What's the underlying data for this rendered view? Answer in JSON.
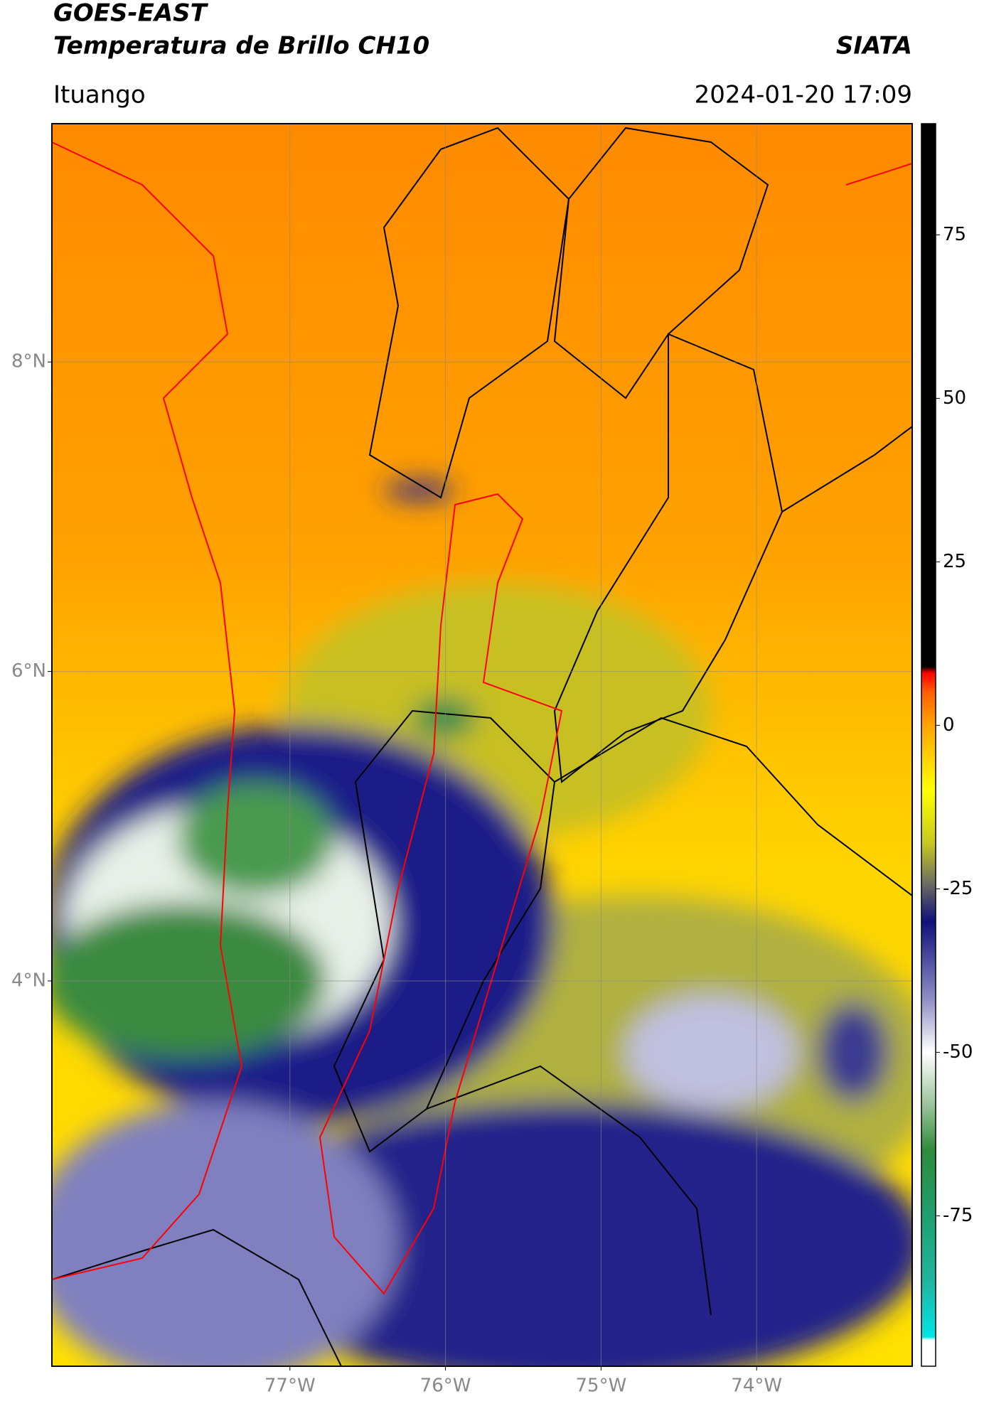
{
  "title": "GOES-EAST",
  "subtitle": "Temperatura de Brillo CH10",
  "source": "SIATA",
  "location": "Ituango",
  "timestamp": "2024-01-20 17:09",
  "chart_data": {
    "type": "map",
    "xlim": [
      -78.53,
      -73.0
    ],
    "ylim": [
      1.51,
      9.54
    ],
    "xticks": [
      {
        "value": -77,
        "label": "77°W"
      },
      {
        "value": -76,
        "label": "76°W"
      },
      {
        "value": -75,
        "label": "75°W"
      },
      {
        "value": -74,
        "label": "74°W"
      }
    ],
    "yticks": [
      {
        "value": 8,
        "label": "8°N"
      },
      {
        "value": 6,
        "label": "6°N"
      },
      {
        "value": 4,
        "label": "4°N"
      }
    ],
    "grid": true,
    "colorbar": {
      "clim": [
        -98,
        92
      ],
      "ticks": [
        75,
        50,
        25,
        0,
        -25,
        -50,
        -75
      ],
      "colormap": [
        {
          "value": -98,
          "color": "#ffffff"
        },
        {
          "value": -94,
          "color": "#ffffff"
        },
        {
          "value": -93.5,
          "color": "#00e5e5"
        },
        {
          "value": -85,
          "color": "#20b5a0"
        },
        {
          "value": -75,
          "color": "#1fa070"
        },
        {
          "value": -65,
          "color": "#2e8b3a"
        },
        {
          "value": -58,
          "color": "#9cc49c"
        },
        {
          "value": -50,
          "color": "#ffffff"
        },
        {
          "value": -42,
          "color": "#9090c8"
        },
        {
          "value": -30,
          "color": "#10107a"
        },
        {
          "value": -24,
          "color": "#707060"
        },
        {
          "value": -18,
          "color": "#c8c820"
        },
        {
          "value": -10,
          "color": "#ffff00"
        },
        {
          "value": 0,
          "color": "#ffa500"
        },
        {
          "value": 5,
          "color": "#ff6000"
        },
        {
          "value": 8,
          "color": "#ff0000"
        },
        {
          "value": 9,
          "color": "#000000"
        },
        {
          "value": 92,
          "color": "#000000"
        }
      ]
    }
  }
}
